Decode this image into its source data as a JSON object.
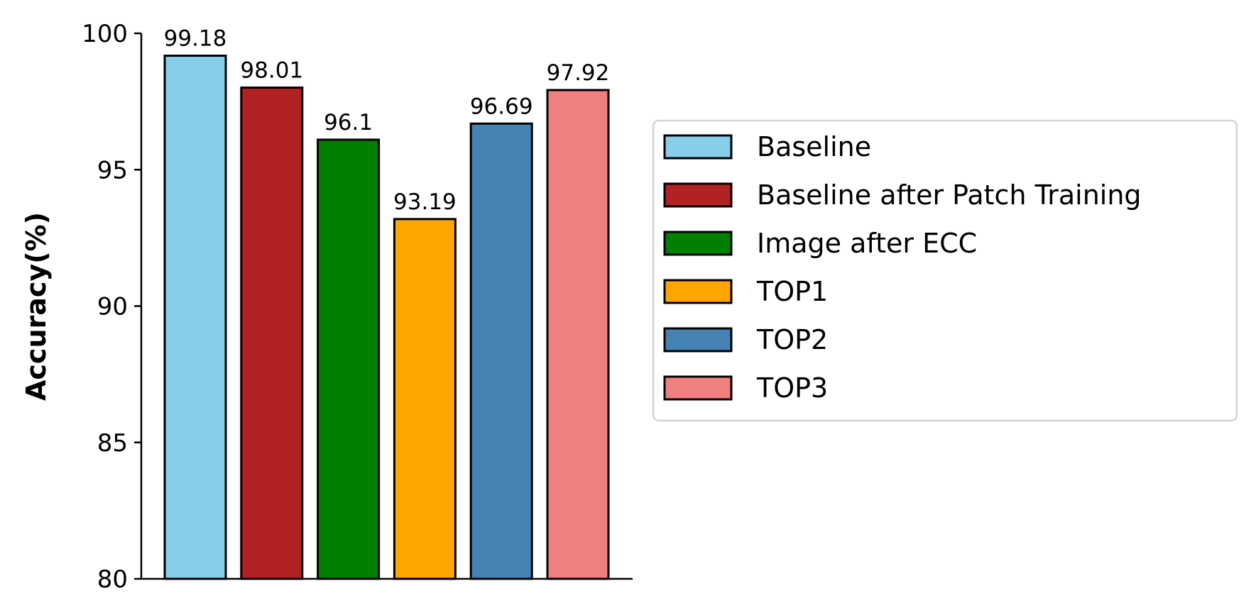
{
  "chart_data": {
    "type": "bar",
    "categories": [
      "Baseline",
      "Baseline after Patch Training",
      "Image after ECC",
      "TOP1",
      "TOP2",
      "TOP3"
    ],
    "values": [
      99.18,
      98.01,
      96.1,
      93.19,
      96.69,
      97.92
    ],
    "value_labels": [
      "99.18",
      "98.01",
      "96.1",
      "93.19",
      "96.69",
      "97.92"
    ],
    "colors": [
      "#87CEEB",
      "#B22222",
      "#008000",
      "#FFA500",
      "#4682B4",
      "#F08080"
    ],
    "ylabel": "Accuracy(%)",
    "xlabel": "",
    "ylim": [
      80,
      100
    ],
    "yticks": [
      80,
      85,
      90,
      95,
      100
    ],
    "ytick_labels": [
      "80",
      "85",
      "90",
      "95",
      "100"
    ],
    "grid": false,
    "legend": {
      "placement": "right",
      "entries": [
        "Baseline",
        "Baseline after Patch Training",
        "Image after ECC",
        "TOP1",
        "TOP2",
        "TOP3"
      ]
    }
  }
}
